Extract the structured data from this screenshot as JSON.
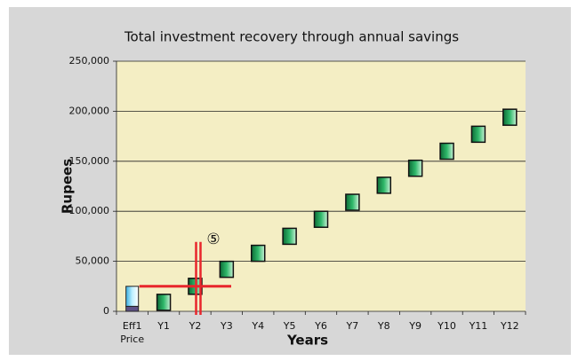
{
  "chart_data": {
    "type": "marker",
    "title": "Total investment recovery through annual savings",
    "x_label": "Years",
    "y_label": "Rupees",
    "categories": [
      "Eff1\nPrice",
      "Y1",
      "Y2",
      "Y3",
      "Y4",
      "Y5",
      "Y6",
      "Y7",
      "Y8",
      "Y9",
      "Y10",
      "Y11",
      "Y12"
    ],
    "values": [
      null,
      9000,
      25000,
      42000,
      58000,
      75000,
      92000,
      109000,
      126000,
      143000,
      160000,
      177000,
      194000
    ],
    "price_segments": [
      5000,
      20000
    ],
    "price_colors": [
      "#5e5185",
      "#8fd8f2"
    ],
    "marker_color": "#1f9a55",
    "payback": {
      "x": 2.6,
      "y": 25000,
      "label": "⑤",
      "color": "#e8262c"
    },
    "ylim": [
      0,
      250000
    ],
    "yticks": [
      0,
      {
        "value": 50000,
        "label": "50,000"
      },
      {
        "value": 100000,
        "label": "100,000"
      },
      {
        "value": 150000,
        "label": "150,000"
      },
      {
        "value": 200000,
        "label": "200,000"
      },
      {
        "value": 250000,
        "label": "250,000"
      }
    ],
    "grid": true
  }
}
